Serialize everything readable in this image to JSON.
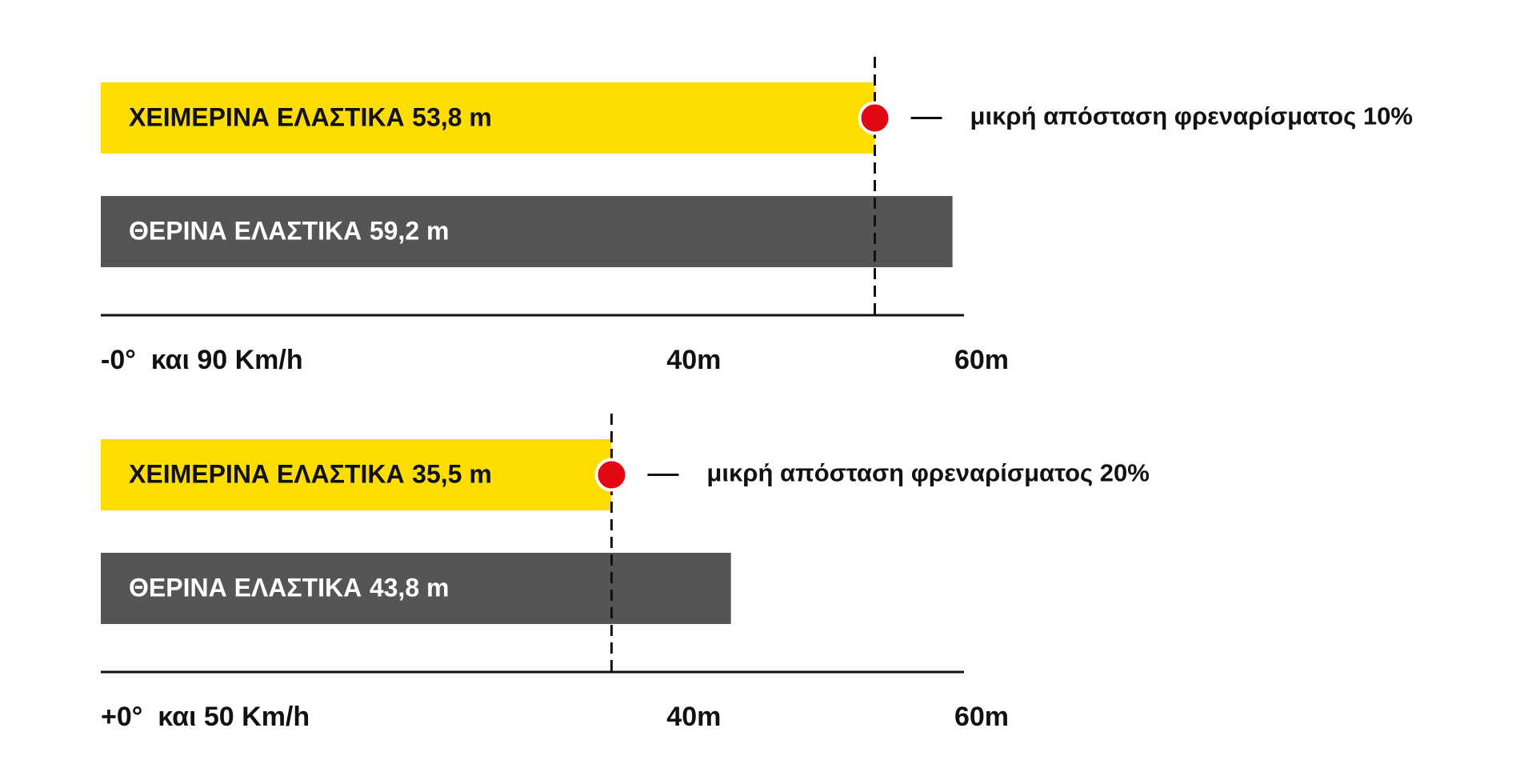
{
  "chart_data": [
    {
      "type": "bar",
      "orientation": "horizontal",
      "categories": [
        "ΧΕΙΜΕΡΙΝΑ ΕΛΑΣΤΙΚΑ",
        "ΘΕΡΙΝΑ ΕΛΑΣΤΙΚΑ"
      ],
      "values": [
        53.8,
        59.2
      ],
      "value_labels": [
        "53,8 m",
        "59,2 m"
      ],
      "colors": [
        "#ffdd00",
        "#575455"
      ],
      "text_colors": [
        "#111111",
        "#ffffff"
      ],
      "xlim": [
        0,
        60
      ],
      "xticks": [
        {
          "value": 40,
          "label": "40m"
        },
        {
          "value": 60,
          "label": "60m"
        }
      ],
      "xlabel": "-0°  και 90 Km/h",
      "annotation": "μικρή απόσταση φρεναρίσματος 10%",
      "marker_color": "#e30613"
    },
    {
      "type": "bar",
      "orientation": "horizontal",
      "categories": [
        "ΧΕΙΜΕΡΙΝΑ ΕΛΑΣΤΙΚΑ",
        "ΘΕΡΙΝΑ ΕΛΑΣΤΙΚΑ"
      ],
      "values": [
        35.5,
        43.8
      ],
      "value_labels": [
        "35,5 m",
        "43,8 m"
      ],
      "colors": [
        "#ffdd00",
        "#575455"
      ],
      "text_colors": [
        "#111111",
        "#ffffff"
      ],
      "xlim": [
        0,
        60
      ],
      "xticks": [
        {
          "value": 40,
          "label": "40m"
        },
        {
          "value": 60,
          "label": "60m"
        }
      ],
      "xlabel": "+0°  και 50 Km/h",
      "annotation": "μικρή απόσταση φρεναρίσματος 20%",
      "marker_color": "#e30613"
    }
  ]
}
